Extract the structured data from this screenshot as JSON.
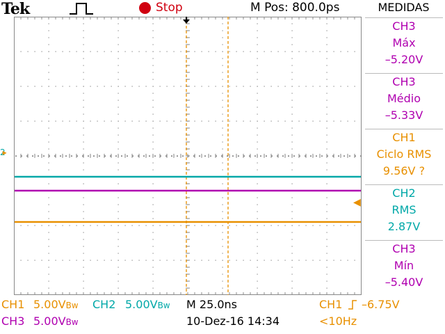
{
  "header": {
    "brand": "Tek",
    "trigger_icon": "pulse-icon",
    "acq_state": "Stop",
    "horizontal_position": "M Pos: 800.0ps"
  },
  "measurements": {
    "title": "MEDIDAS",
    "items": [
      {
        "channel": "CH3",
        "name": "Máx",
        "value": "–5.20V",
        "color": "#b000b0"
      },
      {
        "channel": "CH3",
        "name": "Médio",
        "value": "–5.33V",
        "color": "#b000b0"
      },
      {
        "channel": "CH1",
        "name": "Ciclo RMS",
        "value": "9.56V ?",
        "color": "#e89000"
      },
      {
        "channel": "CH2",
        "name": "RMS",
        "value": "2.87V",
        "color": "#00a8a8"
      },
      {
        "channel": "CH3",
        "name": "Mín",
        "value": "–5.40V",
        "color": "#b000b0"
      }
    ]
  },
  "footer": {
    "ch1_label": "CH1",
    "ch1_scale": "5.00V",
    "ch1_bw": "Bw",
    "ch2_label": "CH2",
    "ch2_scale": "5.00V",
    "ch2_bw": "Bw",
    "ch3_label": "CH3",
    "ch3_scale": "5.00V",
    "ch3_bw": "Bw",
    "timebase": "M 25.0ns",
    "datetime": "10-Dez-16 14:34",
    "trigger_source": "CH1",
    "trigger_level": "–6.75V",
    "trigger_freq": "<10Hz"
  },
  "colors": {
    "ch1": "#e89000",
    "ch2": "#00a8a8",
    "ch3": "#b000b0",
    "grid": "#888888",
    "stop": "#d00010"
  },
  "display": {
    "volts_per_div": 5.0,
    "vertical_divisions": 8,
    "horizontal_divisions": 10,
    "trigger_marker_time_div": 5,
    "cursor_time_div": 6.2,
    "traces": [
      {
        "channel": "CH2",
        "level_div_from_center": -0.6
      },
      {
        "channel": "CH3",
        "level_div_from_center": -1.0
      },
      {
        "channel": "CH1",
        "level_div_from_center": -1.9
      }
    ],
    "ground_marker_div": 0,
    "ch1_trigger_marker_div": -1.45
  }
}
